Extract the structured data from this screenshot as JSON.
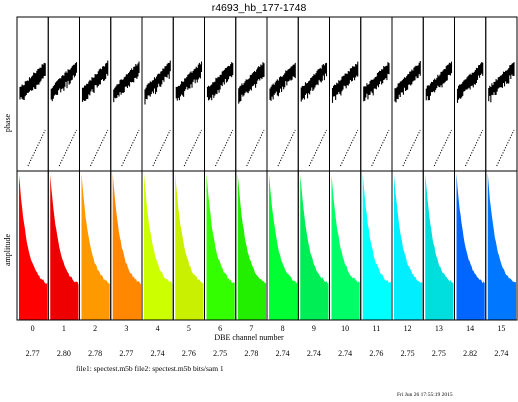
{
  "chart_data": {
    "type": "panel-grid",
    "title": "r4693_hb_177-1748",
    "ylabel_top": "phase",
    "ylabel_bottom": "amplitude",
    "xlabel": "DBE channel number",
    "channels": [
      "0",
      "1",
      "2",
      "3",
      "4",
      "5",
      "6",
      "7",
      "8",
      "9",
      "10",
      "11",
      "12",
      "13",
      "14",
      "15"
    ],
    "values": [
      "2.77",
      "2.80",
      "2.78",
      "2.77",
      "2.74",
      "2.76",
      "2.75",
      "2.78",
      "2.74",
      "2.74",
      "2.74",
      "2.76",
      "2.75",
      "2.75",
      "2.82",
      "2.74"
    ],
    "colors": [
      "#ff0000",
      "#ee0000",
      "#ff9900",
      "#ff8800",
      "#ccff00",
      "#c8f000",
      "#33ff00",
      "#22ee00",
      "#00ff33",
      "#00ee55",
      "#00ff66",
      "#00ffff",
      "#00eeff",
      "#00dddd",
      "#0066ff",
      "#0077ff"
    ],
    "footer_files": "file1: spectest.m5b file2: spectest.m5b bits/sam 1",
    "timestamp": "Fri Jun 26 17:55:19 2015"
  }
}
